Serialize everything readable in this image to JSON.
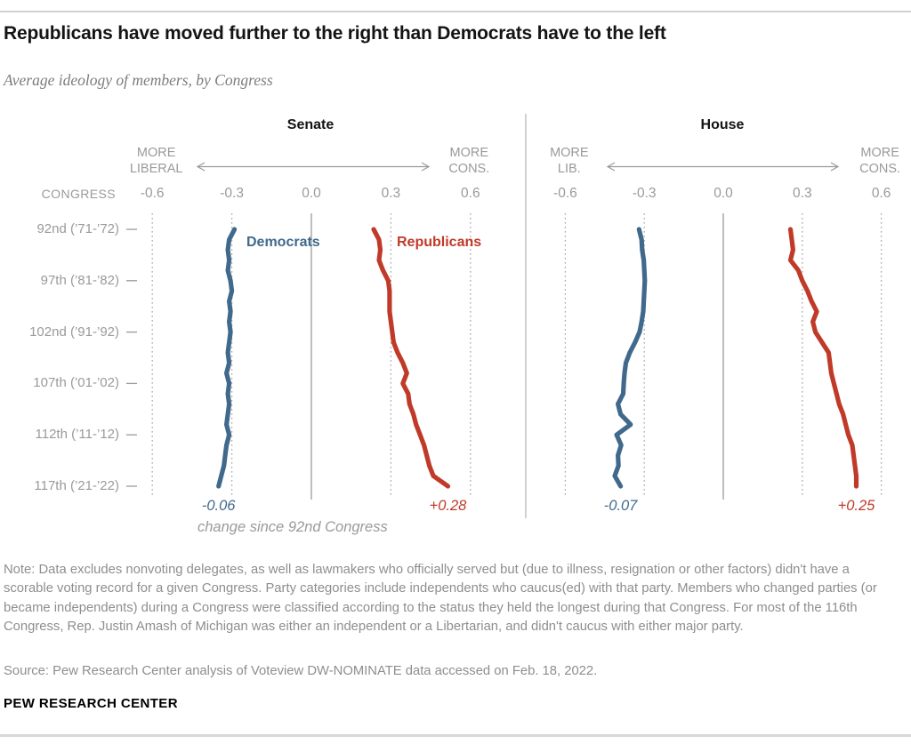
{
  "header": {
    "title": "Republicans have moved further to the right than Democrats have to the left",
    "subtitle": "Average ideology of members, by Congress"
  },
  "axis": {
    "congress_label": "CONGRESS",
    "change_caption": "change since 92nd Congress"
  },
  "colors": {
    "democrat": "#40698c",
    "republican": "#c03a29",
    "axis_gray": "#9a9a9a",
    "grid_dotted": "#a8a8a8",
    "divider": "#b8b8b8"
  },
  "chart_data": {
    "type": "line",
    "orientation": "vertical-time",
    "x_ticks": [
      -0.6,
      -0.3,
      0,
      0.3,
      0.6
    ],
    "x_tick_labels": [
      "-0.6",
      "-0.3",
      "0.0",
      "0.3",
      "0.6"
    ],
    "xlim": [
      -0.6,
      0.6
    ],
    "congress_start": 92,
    "congress_end": 117,
    "row_labels": [
      {
        "congress": 92,
        "label": "92nd (’71-’72)"
      },
      {
        "congress": 97,
        "label": "97th (’81-’82)"
      },
      {
        "congress": 102,
        "label": "102nd (’91-’92)"
      },
      {
        "congress": 107,
        "label": "107th (’01-’02)"
      },
      {
        "congress": 112,
        "label": "112th (’11-’12)"
      },
      {
        "congress": 117,
        "label": "117th (’21-’22)"
      }
    ],
    "panels": [
      {
        "title": "Senate",
        "left_direction_label": "MORE LIBERAL",
        "right_direction_label": "MORE CONS.",
        "show_series_labels": true,
        "series": [
          {
            "name": "Democrats",
            "party": "democrat",
            "change_since_92nd": "-0.06",
            "values": [
              -0.29,
              -0.31,
              -0.315,
              -0.31,
              -0.315,
              -0.305,
              -0.3,
              -0.31,
              -0.305,
              -0.31,
              -0.305,
              -0.31,
              -0.315,
              -0.31,
              -0.32,
              -0.31,
              -0.315,
              -0.31,
              -0.315,
              -0.32,
              -0.31,
              -0.32,
              -0.325,
              -0.33,
              -0.34,
              -0.35
            ]
          },
          {
            "name": "Republicans",
            "party": "republican",
            "change_since_92nd": "+0.28",
            "values": [
              0.235,
              0.255,
              0.26,
              0.255,
              0.27,
              0.29,
              0.295,
              0.295,
              0.295,
              0.3,
              0.305,
              0.31,
              0.325,
              0.345,
              0.36,
              0.345,
              0.365,
              0.37,
              0.385,
              0.395,
              0.41,
              0.425,
              0.435,
              0.445,
              0.46,
              0.515
            ]
          }
        ]
      },
      {
        "title": "House",
        "left_direction_label": "MORE LIB.",
        "right_direction_label": "MORE CONS.",
        "show_series_labels": false,
        "series": [
          {
            "name": "Democrats",
            "party": "democrat",
            "change_since_92nd": "-0.07",
            "values": [
              -0.32,
              -0.31,
              -0.308,
              -0.302,
              -0.3,
              -0.298,
              -0.3,
              -0.302,
              -0.304,
              -0.31,
              -0.318,
              -0.335,
              -0.355,
              -0.37,
              -0.375,
              -0.378,
              -0.38,
              -0.4,
              -0.39,
              -0.352,
              -0.405,
              -0.388,
              -0.4,
              -0.398,
              -0.412,
              -0.39
            ]
          },
          {
            "name": "Republicans",
            "party": "republican",
            "change_since_92nd": "+0.25",
            "values": [
              0.255,
              0.26,
              0.265,
              0.255,
              0.285,
              0.3,
              0.32,
              0.335,
              0.355,
              0.34,
              0.35,
              0.375,
              0.4,
              0.405,
              0.41,
              0.42,
              0.43,
              0.44,
              0.455,
              0.465,
              0.475,
              0.49,
              0.495,
              0.5,
              0.505,
              0.505
            ]
          }
        ]
      }
    ]
  },
  "footer": {
    "note": "Note: Data excludes nonvoting delegates, as well as lawmakers who officially served but (due to illness, resignation or other factors) didn't have a scorable voting record for a given Congress. Party categories include independents who caucus(ed) with that party. Members who changed parties (or became independents) during a Congress were classified according to the status they held the longest during that Congress. For most of the 116th Congress, Rep. Justin Amash of Michigan was either an independent or a Libertarian, and didn't caucus with either major party.",
    "source": "Source: Pew Research Center analysis of Voteview DW-NOMINATE data accessed on Feb. 18, 2022.",
    "brand": "PEW RESEARCH CENTER"
  }
}
